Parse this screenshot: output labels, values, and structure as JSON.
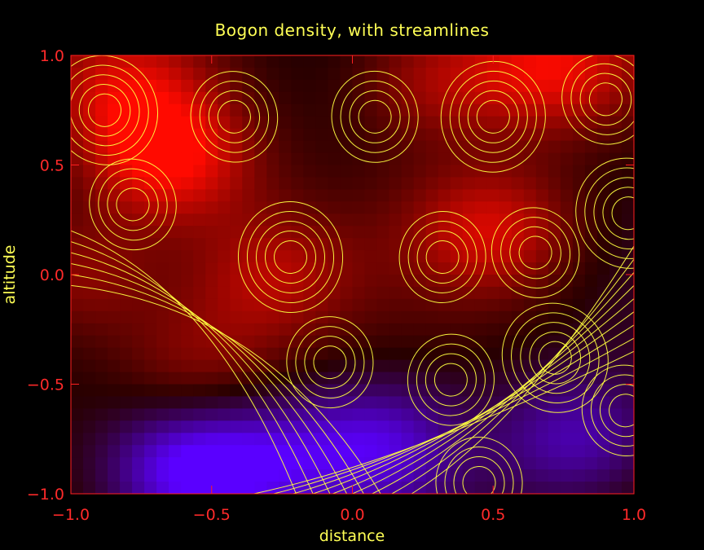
{
  "chart_data": {
    "type": "heatmap",
    "title": "Bogon density, with streamlines",
    "xlabel": "distance",
    "ylabel": "altitude",
    "xlim": [
      -1.0,
      1.0
    ],
    "ylim": [
      -1.0,
      1.0
    ],
    "x_ticks": [
      "−1.0",
      "−0.5",
      "0.0",
      "0.5",
      "1.0"
    ],
    "y_ticks": [
      "−1.0",
      "−0.5",
      "0.0",
      "0.5",
      "1.0"
    ],
    "x_tick_values": [
      -1.0,
      -0.5,
      0.0,
      0.5,
      1.0
    ],
    "y_tick_values": [
      -1.0,
      -0.5,
      0.0,
      0.5,
      1.0
    ],
    "grid": false,
    "colors": {
      "background": "#000000",
      "frame": "#ff2020",
      "tick_labels": "#ff2a2a",
      "title": "#ffff55",
      "contours": "#ffff40",
      "high_density": "#ff1a00",
      "mid_density": "#3a0000",
      "low_density": "#5a00ff"
    },
    "density_peaks": [
      {
        "x": -0.65,
        "y": 0.52,
        "value": 1.0
      },
      {
        "x": 0.5,
        "y": 0.2,
        "value": 0.75
      },
      {
        "x": -0.3,
        "y": 0.0,
        "value": 0.6
      },
      {
        "x": -0.95,
        "y": 0.0,
        "value": 0.55
      },
      {
        "x": 0.72,
        "y": 0.95,
        "value": 0.85
      },
      {
        "x": 0.3,
        "y": 0.9,
        "value": 0.6
      },
      {
        "x": -0.8,
        "y": 0.85,
        "value": 0.65
      },
      {
        "x": -0.55,
        "y": -0.4,
        "value": 0.45
      },
      {
        "x": -0.6,
        "y": -0.9,
        "value": -1.0
      },
      {
        "x": 0.1,
        "y": -0.78,
        "value": -0.75
      },
      {
        "x": 0.8,
        "y": -0.75,
        "value": -0.7
      },
      {
        "x": -0.3,
        "y": -0.85,
        "value": -0.6
      }
    ],
    "streamline_vortices": [
      {
        "x": -0.88,
        "y": 0.75
      },
      {
        "x": -0.42,
        "y": 0.72
      },
      {
        "x": 0.08,
        "y": 0.72
      },
      {
        "x": 0.5,
        "y": 0.72
      },
      {
        "x": 0.9,
        "y": 0.8
      },
      {
        "x": -0.78,
        "y": 0.32
      },
      {
        "x": -0.22,
        "y": 0.08
      },
      {
        "x": 0.32,
        "y": 0.08
      },
      {
        "x": 0.65,
        "y": 0.1
      },
      {
        "x": 0.98,
        "y": 0.28
      },
      {
        "x": -0.08,
        "y": -0.4
      },
      {
        "x": 0.35,
        "y": -0.48
      },
      {
        "x": 0.72,
        "y": -0.38
      },
      {
        "x": 0.97,
        "y": -0.62
      },
      {
        "x": 0.45,
        "y": -0.95
      }
    ]
  }
}
